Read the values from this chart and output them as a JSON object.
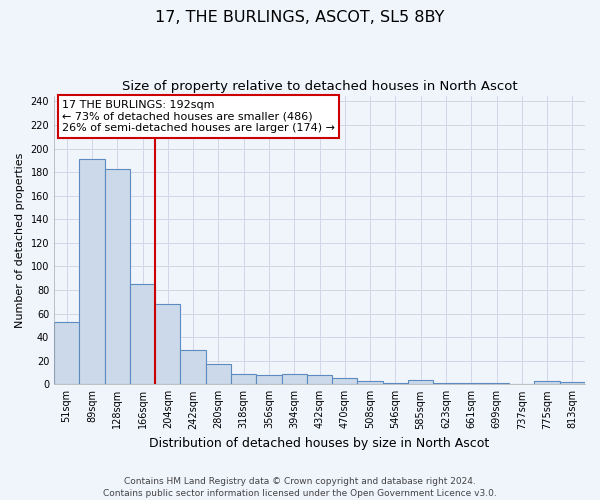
{
  "title": "17, THE BURLINGS, ASCOT, SL5 8BY",
  "subtitle": "Size of property relative to detached houses in North Ascot",
  "xlabel": "Distribution of detached houses by size in North Ascot",
  "ylabel": "Number of detached properties",
  "bar_labels": [
    "51sqm",
    "89sqm",
    "128sqm",
    "166sqm",
    "204sqm",
    "242sqm",
    "280sqm",
    "318sqm",
    "356sqm",
    "394sqm",
    "432sqm",
    "470sqm",
    "508sqm",
    "546sqm",
    "585sqm",
    "623sqm",
    "661sqm",
    "699sqm",
    "737sqm",
    "775sqm",
    "813sqm"
  ],
  "bar_values": [
    53,
    191,
    183,
    85,
    68,
    29,
    17,
    9,
    8,
    9,
    8,
    5,
    3,
    1,
    4,
    1,
    1,
    1,
    0,
    3,
    2
  ],
  "bar_color": "#ccd9ea",
  "bar_edge_color": "#5b8bbf",
  "bar_linewidth": 0.8,
  "vline_color": "#cc0000",
  "annotation_text": "17 THE BURLINGS: 192sqm\n← 73% of detached houses are smaller (486)\n26% of semi-detached houses are larger (174) →",
  "annotation_box_color": "#ffffff",
  "annotation_box_edgecolor": "#cc0000",
  "ylim": [
    0,
    245
  ],
  "yticks": [
    0,
    20,
    40,
    60,
    80,
    100,
    120,
    140,
    160,
    180,
    200,
    220,
    240
  ],
  "grid_color": "#d0d8e8",
  "background_color": "#f0f4fb",
  "footer": "Contains HM Land Registry data © Crown copyright and database right 2024.\nContains public sector information licensed under the Open Government Licence v3.0.",
  "title_fontsize": 11.5,
  "subtitle_fontsize": 9.5,
  "xlabel_fontsize": 9,
  "ylabel_fontsize": 8,
  "tick_fontsize": 7,
  "footer_fontsize": 6.5,
  "annotation_fontsize": 8
}
